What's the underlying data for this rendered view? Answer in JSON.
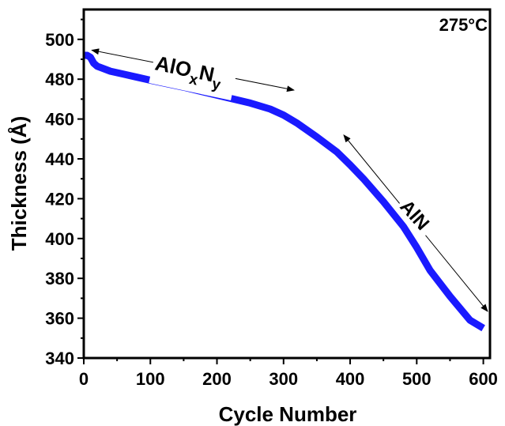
{
  "chart_data": {
    "type": "line",
    "xlabel": "Cycle Number",
    "ylabel": "Thickness (Å)",
    "xlim": [
      0,
      610
    ],
    "ylim": [
      340,
      515
    ],
    "xticks": [
      0,
      100,
      200,
      300,
      400,
      500,
      600
    ],
    "yticks": [
      340,
      360,
      380,
      400,
      420,
      440,
      460,
      480,
      500
    ],
    "xtick_labels": [
      "0",
      "100",
      "200",
      "300",
      "400",
      "500",
      "600"
    ],
    "ytick_labels": [
      "340",
      "360",
      "380",
      "400",
      "420",
      "440",
      "460",
      "480",
      "500"
    ],
    "grid": false,
    "colors": {
      "series": "#1a1aff",
      "axis": "#000000"
    },
    "series": [
      {
        "x": [
          0,
          5,
          10,
          15,
          20,
          40,
          60,
          80,
          100,
          150,
          200,
          250,
          280,
          300,
          320,
          350,
          380,
          400,
          420,
          450,
          480,
          500,
          520,
          550,
          580,
          600
        ],
        "y": [
          492,
          492,
          491,
          488,
          486.5,
          484,
          482.5,
          481,
          479.5,
          476,
          472,
          468,
          465,
          462,
          458,
          451,
          443.5,
          437,
          430,
          418.5,
          406,
          395.5,
          384,
          371,
          359,
          355
        ]
      }
    ],
    "annotations": [
      {
        "text_main": "AlO",
        "sub1": "x",
        "text_mid": "N",
        "sub2": "y",
        "label": "AlOxNy"
      },
      {
        "text_main": "AlN",
        "label": "AlN"
      },
      {
        "text_main": "275°C",
        "label": "275°C"
      }
    ]
  }
}
